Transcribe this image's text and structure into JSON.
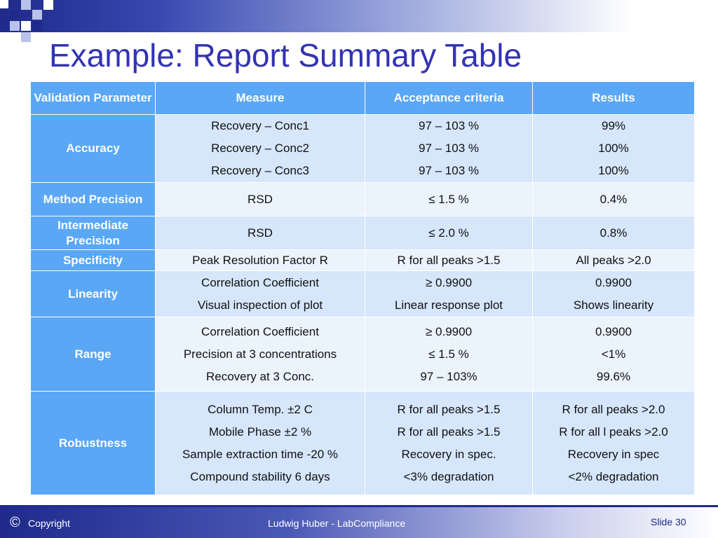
{
  "title": "Example: Report Summary Table",
  "table": {
    "headers": [
      "Validation Parameter",
      "Measure",
      "Acceptance criteria",
      "Results"
    ],
    "rows": [
      {
        "parameter": "Accuracy",
        "measures": [
          "Recovery – Conc1",
          "Recovery – Conc2",
          "Recovery – Conc3"
        ],
        "criteria": [
          "97 – 103 %",
          "97 – 103 %",
          "97 – 103 %"
        ],
        "results": [
          "99%",
          "100%",
          "100%"
        ]
      },
      {
        "parameter": "Method Precision",
        "measures": [
          "RSD"
        ],
        "criteria": [
          "≤ 1.5 %"
        ],
        "results": [
          "0.4%"
        ]
      },
      {
        "parameter": "Intermediate Precision",
        "measures": [
          "RSD"
        ],
        "criteria": [
          "≤ 2.0 %"
        ],
        "results": [
          "0.8%"
        ]
      },
      {
        "parameter": "Specificity",
        "measures": [
          "Peak Resolution Factor R"
        ],
        "criteria": [
          "R for all peaks >1.5"
        ],
        "results": [
          "All peaks >2.0"
        ]
      },
      {
        "parameter": "Linearity",
        "measures": [
          "Correlation Coefficient",
          "Visual inspection of plot"
        ],
        "criteria": [
          "≥ 0.9900",
          "Linear response plot"
        ],
        "results": [
          "0.9900",
          "Shows linearity"
        ]
      },
      {
        "parameter": "Range",
        "measures": [
          "Correlation Coefficient",
          "Precision at 3 concentrations",
          "Recovery at 3 Conc."
        ],
        "criteria": [
          "≥ 0.9900",
          "≤ 1.5 %",
          "97 – 103%"
        ],
        "results": [
          "0.9900",
          "<1%",
          "99.6%"
        ]
      },
      {
        "parameter": "Robustness",
        "measures": [
          "Column Temp. ±2 C",
          "Mobile Phase  ±2 %",
          "Sample extraction time -20 %",
          "Compound stability 6 days"
        ],
        "criteria": [
          "R for all peaks >1.5",
          "R for all peaks >1.5",
          "Recovery in spec.",
          "<3% degradation"
        ],
        "results": [
          "R for all peaks >2.0",
          "R for all l peaks >2.0",
          "Recovery in spec",
          "<2% degradation"
        ]
      }
    ]
  },
  "footer": {
    "copyright_symbol": "©",
    "copyright_label": "Copyright",
    "author": "Ludwig Huber - LabCompliance",
    "slide_label": "Slide 30"
  }
}
